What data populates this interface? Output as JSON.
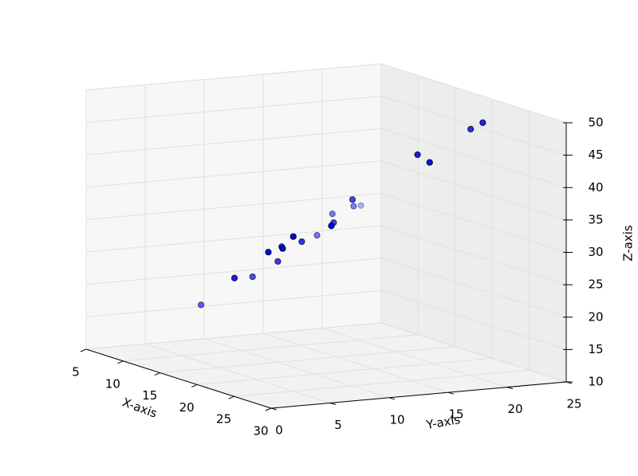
{
  "chart_data": {
    "type": "scatter3d",
    "xlabel": "X-axis",
    "ylabel": "Y-axis",
    "zlabel": "Z-axis",
    "xlim": [
      5,
      30
    ],
    "ylim": [
      0,
      25
    ],
    "zlim": [
      10,
      50
    ],
    "xticks": [
      5,
      10,
      15,
      20,
      25,
      30
    ],
    "yticks": [
      0,
      5,
      10,
      15,
      20,
      25
    ],
    "zticks": [
      10,
      15,
      20,
      25,
      30,
      35,
      40,
      45,
      50
    ],
    "grid": true,
    "color": "#0000ff",
    "x": [
      10,
      15,
      12.5,
      17.5,
      14,
      15,
      18,
      18,
      15,
      11,
      19,
      15,
      11,
      15,
      11,
      8,
      19,
      20,
      19,
      20
    ],
    "y": [
      6.6,
      6.3,
      9.4,
      7.6,
      10.6,
      10.3,
      8.5,
      9.4,
      12.0,
      15.8,
      12.0,
      14.7,
      17.1,
      16.3,
      18.9,
      21.4,
      19.3,
      19.7,
      23.8,
      24.2
    ],
    "z": [
      17.6,
      23.6,
      22.4,
      28.3,
      25.1,
      27.8,
      28.9,
      30.6,
      28.3,
      27.2,
      32.2,
      30.8,
      30.3,
      34.1,
      31.2,
      29.8,
      42.0,
      41.1,
      45.2,
      46.5
    ]
  }
}
